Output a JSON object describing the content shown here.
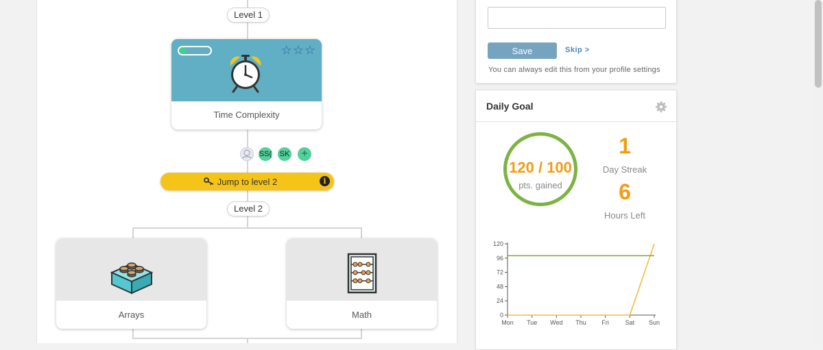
{
  "path": {
    "level1_label": "Level 1",
    "level2_label": "Level 2",
    "topics": {
      "time_complexity": {
        "title": "Time Complexity",
        "progress": 0.22,
        "stars": [
          "☆",
          "☆",
          "☆"
        ],
        "icon": "alarm-clock-icon",
        "color": "#61afc4"
      },
      "arrays": {
        "title": "Arrays",
        "icon": "lego-brick-icon"
      },
      "math": {
        "title": "Math",
        "icon": "abacus-icon"
      }
    },
    "members": {
      "initials": [
        "SS(",
        "SK"
      ],
      "add_label": "+"
    },
    "jump": {
      "label": "Jump to level 2",
      "info": "i"
    }
  },
  "profile_prompt": {
    "input_value": "",
    "save_label": "Save",
    "skip_label": "Skip >",
    "hint": "You can always edit this from your profile settings"
  },
  "daily_goal": {
    "title": "Daily Goal",
    "points_text": "120 / 100",
    "points_caption": "pts. gained",
    "streak_value": "1",
    "streak_label": "Day Streak",
    "hours_value": "6",
    "hours_label": "Hours Left",
    "accent": "#f39c12",
    "ring_color": "#7cb342"
  },
  "chart_data": {
    "type": "line",
    "categories": [
      "Mon",
      "Tue",
      "Wed",
      "Thu",
      "Fri",
      "Sat",
      "Sun"
    ],
    "yticks": [
      0,
      24,
      48,
      72,
      96,
      120
    ],
    "ylim": [
      0,
      120
    ],
    "series": [
      {
        "values": [
          0,
          0,
          0,
          0,
          0,
          0,
          120
        ],
        "color": "#f5b942"
      },
      {
        "values": [
          100,
          100,
          100,
          100,
          100,
          100,
          100
        ],
        "color": "#7cb342"
      }
    ]
  }
}
